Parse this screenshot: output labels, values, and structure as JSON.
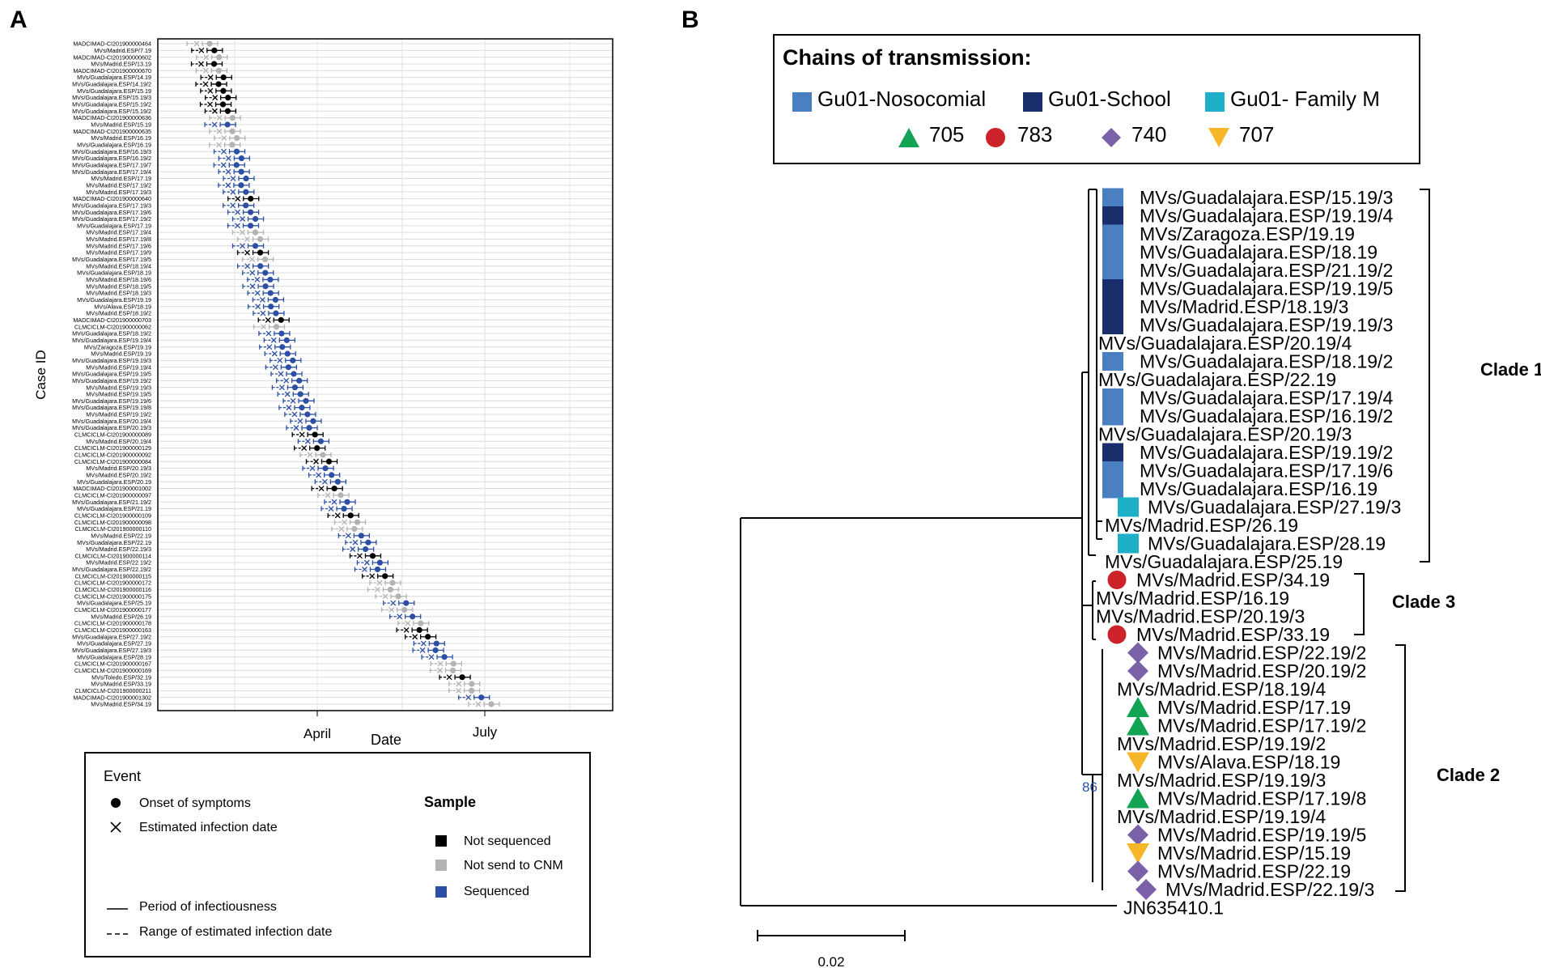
{
  "panel_a": {
    "letter": "A",
    "y_axis_title": "Case ID",
    "x_axis_title": "Date",
    "x_tick_labels": [
      "April",
      "July"
    ],
    "case_ids": [
      "MADCIMAD-CI201900000464",
      "MVs/Madrid.ESP/7.19",
      "MADCIMAD-CI201900000602",
      "MVs/Madrid.ESP/13.19",
      "MADCIMAD-CI201900000670",
      "MVs/Guadalajara.ESP/14.19",
      "MVs/Guadalajara.ESP/14.19/2",
      "MVs/Guadalajara.ESP/15.19",
      "MVs/Guadalajara.ESP/15.19/3",
      "MVs/Guadalajara.ESP/15.19/2",
      "MVs/Guadalajara.ESP/15.19/2",
      "MADCIMAD-CI201900000636",
      "MVs/Madrid.ESP/15.19",
      "MADCIMAD-CI201900000635",
      "MVs/Madrid.ESP/16.19",
      "MVs/Guadalajara.ESP/16.19",
      "MVs/Guadalajara.ESP/16.19/3",
      "MVs/Guadalajara.ESP/16.19/2",
      "MVs/Guadalajara.ESP/17.19/7",
      "MVs/Guadalajara.ESP/17.19/4",
      "MVs/Madrid.ESP/17.19",
      "MVs/Madrid.ESP/17.19/2",
      "MVs/Madrid.ESP/17.19/3",
      "MADCIMAD-CI201900000640",
      "MVs/Guadalajara.ESP/17.19/3",
      "MVs/Guadalajara.ESP/17.19/6",
      "MVs/Guadalajara.ESP/17.19/2",
      "MVs/Guadalajara.ESP/17.19",
      "MVs/Madrid.ESP/17.19/4",
      "MVs/Madrid.ESP/17.19/8",
      "MVs/Madrid.ESP/17.19/6",
      "MVs/Madrid.ESP/17.19/9",
      "MVs/Guadalajara.ESP/17.19/5",
      "MVs/Madrid.ESP/18.19/4",
      "MVs/Guadalajara.ESP/18.19",
      "MVs/Madrid.ESP/18.19/6",
      "MVs/Madrid.ESP/18.19/5",
      "MVs/Madrid.ESP/18.19/3",
      "MVs/Guadalajara.ESP/19.19",
      "MVs/Alava.ESP/18.19",
      "MVs/Madrid.ESP/18.19/2",
      "MADCIMAD-CI201900000703",
      "CLMCICLM-CI201900000062",
      "MVs/Guadalajara.ESP/18.19/2",
      "MVs/Guadalajara.ESP/19.19/4",
      "MVs/Zaragoza.ESP/19.19",
      "MVs/Madrid.ESP/19.19",
      "MVs/Guadalajara.ESP/19.19/3",
      "MVs/Madrid.ESP/19.19/4",
      "MVs/Guadalajara.ESP/19.19/5",
      "MVs/Guadalajara.ESP/19.19/2",
      "MVs/Madrid.ESP/19.19/3",
      "MVs/Madrid.ESP/19.19/5",
      "MVs/Guadalajara.ESP/19.19/6",
      "MVs/Guadalajara.ESP/19.19/8",
      "MVs/Madrid.ESP/19.19/2",
      "MVs/Guadalajara.ESP/20.19/4",
      "MVs/Guadalajara.ESP/20.19/3",
      "CLMCICLM-CI201900000089",
      "MVs/Madrid.ESP/20.19/4",
      "CLMCICLM-CI201900000129",
      "CLMCICLM-CI201900000092",
      "CLMCICLM-CI201900000084",
      "MVs/Madrid.ESP/20.19/3",
      "MVs/Madrid.ESP/20.19/2",
      "MVs/Guadalajara.ESP/20.19",
      "MADCIMAD-CI201900001002",
      "CLMCICLM-CI201900000097",
      "MVs/Guadalajara.ESP/21.19/2",
      "MVs/Guadalajara.ESP/21.19",
      "CLMCICLM-CI201900000109",
      "CLMCICLM-CI201900000098",
      "CLMCICLM-CI201900000110",
      "MVs/Madrid.ESP/22.19",
      "MVs/Guadalajara.ESP/22.19",
      "MVs/Madrid.ESP/22.19/3",
      "CLMCICLM-CI201900000114",
      "MVs/Madrid.ESP/22.19/2",
      "MVs/Guadalajara.ESP/22.19/2",
      "CLMCICLM-CI201900000115",
      "CLMCICLM-CI201900000172",
      "CLMCICLM-CI201900000116",
      "CLMCICLM-CI201900000175",
      "MVs/Guadalajara.ESP/25.19",
      "CLMCICLM-CI201900000177",
      "MVs/Madrid.ESP/26.19",
      "CLMCICLM-CI201900000178",
      "CLMCICLM-CI201900000163",
      "MVs/Guadalajara.ESP/27.19/2",
      "MVs/Guadalajara.ESP/27.19",
      "MVs/Guadalajara.ESP/27.19/3",
      "MVs/Guadalajara.ESP/28.19",
      "CLMCICLM-CI201900000167",
      "CLMCICLM-CI201900000169",
      "MVs/Toledo.ESP/32.19",
      "MVs/Madrid.ESP/33.19",
      "CLMCICLM-CI201900000211",
      "MADCIMAD-CI201900001302",
      "MVs/Madrid.ESP/34.19"
    ],
    "legend": {
      "event_title": "Event",
      "onset_label": "Onset of symptoms",
      "infection_label": "Estimated infection date",
      "period_label": "Period of infectiousness",
      "range_label": "Range of estimated infection date",
      "sample_title": "Sample",
      "not_sequenced_label": "Not sequenced",
      "not_sent_label": "Not send to CNM",
      "sequenced_label": "Sequenced",
      "colors": {
        "not_sequenced": "#000000",
        "not_sent": "#b3b3b3",
        "sequenced": "#2c4fa3"
      }
    }
  },
  "panel_b": {
    "letter": "B",
    "legend_title": "Chains of transmission:",
    "chains": [
      {
        "label": "Gu01-Nosocomial",
        "color": "#4a7fc1"
      },
      {
        "label": "Gu01-School",
        "color": "#1a2e6b"
      },
      {
        "label": "Gu01- Family M",
        "color": "#1eb0c8"
      }
    ],
    "symbols": [
      {
        "label": "705",
        "shape": "triangle-up",
        "color": "#12a354"
      },
      {
        "label": "783",
        "shape": "circle",
        "color": "#cc2229"
      },
      {
        "label": "740",
        "shape": "diamond",
        "color": "#7b62a8"
      },
      {
        "label": "707",
        "shape": "triangle-down",
        "color": "#f7b52a"
      }
    ],
    "tips": [
      "MVs/Guadalajara.ESP/15.19/3",
      "MVs/Guadalajara.ESP/19.19/4",
      "MVs/Zaragoza.ESP/19.19",
      "MVs/Guadalajara.ESP/18.19",
      "MVs/Guadalajara.ESP/21.19/2",
      "MVs/Guadalajara.ESP/19.19/5",
      "MVs/Madrid.ESP/18.19/3",
      "MVs/Guadalajara.ESP/19.19/3",
      "MVs/Guadalajara.ESP/20.19/4",
      "MVs/Guadalajara.ESP/18.19/2",
      "MVs/Guadalajara.ESP/22.19",
      "MVs/Guadalajara.ESP/17.19/4",
      "MVs/Guadalajara.ESP/16.19/2",
      "MVs/Guadalajara.ESP/20.19/3",
      "MVs/Guadalajara.ESP/19.19/2",
      "MVs/Guadalajara.ESP/17.19/6",
      "MVs/Guadalajara.ESP/16.19",
      "MVs/Guadalajara.ESP/27.19/3",
      "MVs/Madrid.ESP/26.19",
      "MVs/Guadalajara.ESP/28.19",
      "MVs/Guadalajara.ESP/25.19",
      "MVs/Madrid.ESP/34.19",
      "MVs/Madrid.ESP/16.19",
      "MVs/Madrid.ESP/20.19/3",
      "MVs/Madrid.ESP/33.19",
      "MVs/Madrid.ESP/22.19/2",
      "MVs/Madrid.ESP/20.19/2",
      "MVs/Madrid.ESP/18.19/4",
      "MVs/Madrid.ESP/17.19",
      "MVs/Madrid.ESP/17.19/2",
      "MVs/Madrid.ESP/19.19/2",
      "MVs/Alava.ESP/18.19",
      "MVs/Madrid.ESP/19.19/3",
      "MVs/Madrid.ESP/17.19/8",
      "MVs/Madrid.ESP/19.19/4",
      "MVs/Madrid.ESP/19.19/5",
      "MVs/Madrid.ESP/15.19",
      "MVs/Madrid.ESP/22.19",
      "MVs/Madrid.ESP/22.19/3",
      "JN635410.1"
    ],
    "clade_labels": [
      "Clade 1",
      "Clade 3",
      "Clade 2"
    ],
    "bootstrap": "86",
    "scale_label": "0.02"
  }
}
